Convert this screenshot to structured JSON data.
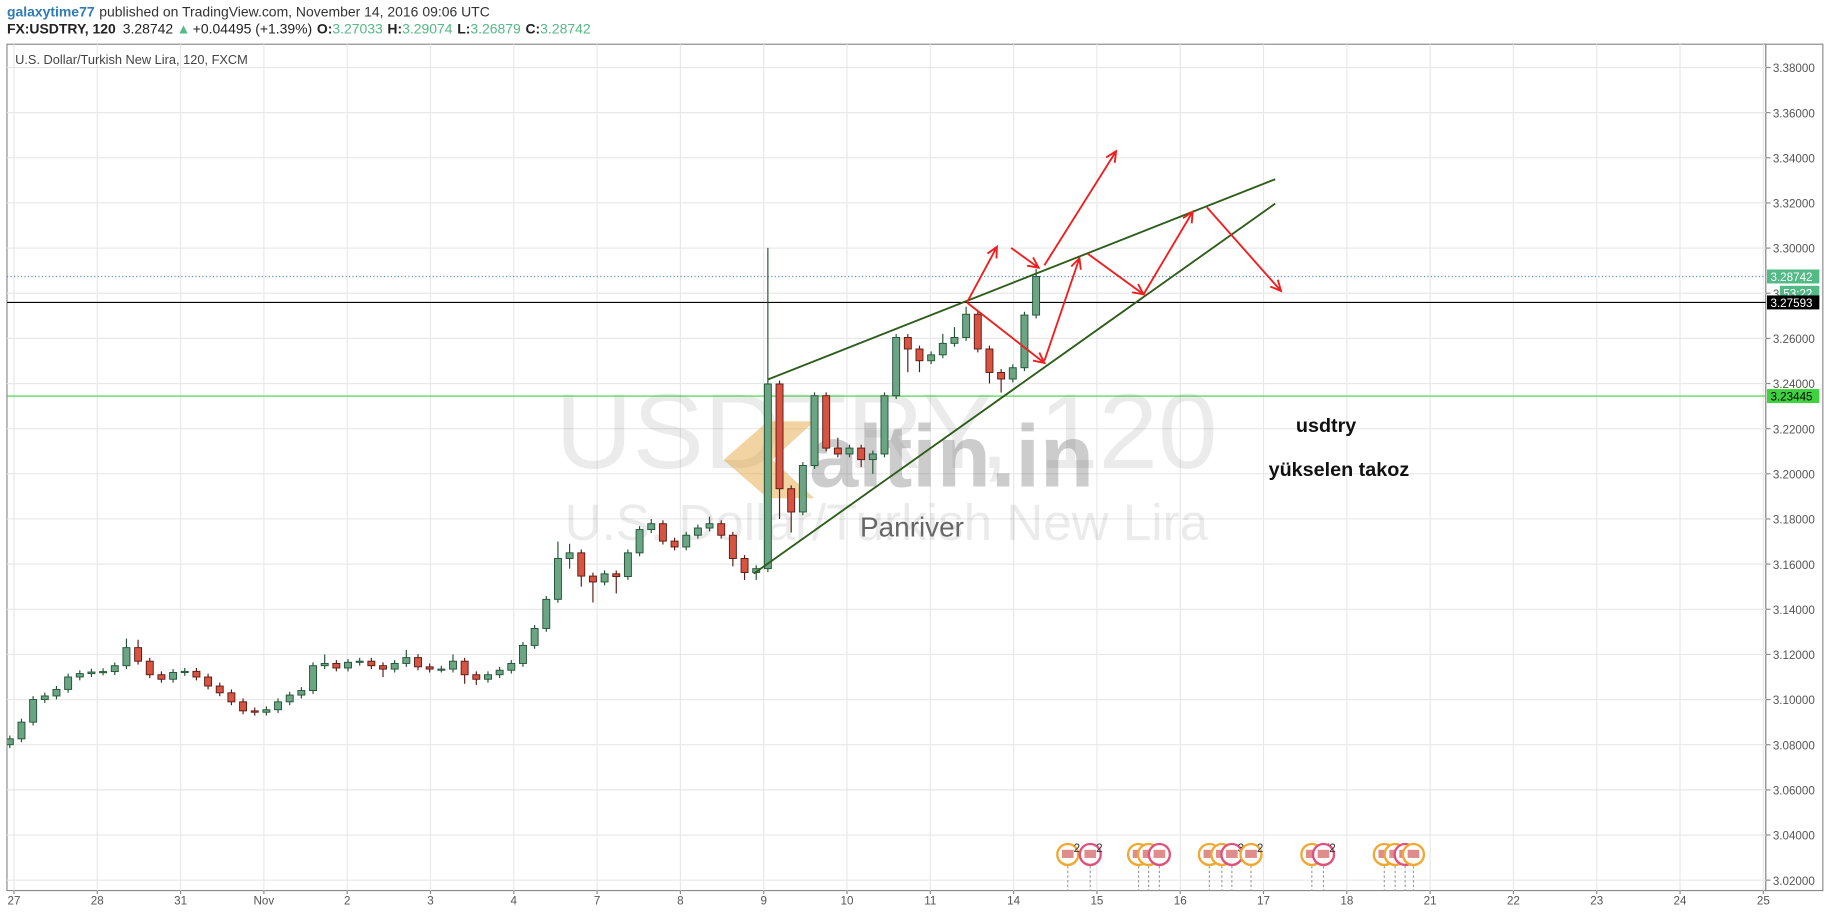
{
  "header": {
    "author": "galaxytime77",
    "published": "published on TradingView.com, November 14, 2016 09:06 UTC",
    "symbol": "FX:USDTRY, 120",
    "direction": "▲",
    "change": "+0.04495 (+1.39%)",
    "ohlc_labels": [
      "O:",
      "H:",
      "L:",
      "C:"
    ]
  },
  "chart_data": {
    "type": "candlestick",
    "title": "U.S. Dollar/Turkish New Lira, 120, FXCM",
    "watermark": "USDTRY, 120",
    "watermark_subtitle": "U.S. Dollar/Turkish New Lira",
    "logo": "altin.in",
    "logo_caption": "Panriver",
    "annotations": [
      "usdtry",
      "yükselen takoz"
    ],
    "x": [
      -0.05,
      0.09,
      0.23,
      0.37,
      0.51,
      0.65,
      0.79,
      0.93,
      1.07,
      1.21,
      1.35,
      1.49,
      1.63,
      1.77,
      1.91,
      2.05,
      2.19,
      2.33,
      2.47,
      2.61,
      2.75,
      2.89,
      3.03,
      3.17,
      3.31,
      3.45,
      3.59,
      3.73,
      3.87,
      4.01,
      4.15,
      4.29,
      4.43,
      4.57,
      4.71,
      4.85,
      4.99,
      5.13,
      5.27,
      5.41,
      5.55,
      5.69,
      5.83,
      5.97,
      6.11,
      6.25,
      6.39,
      6.53,
      6.67,
      6.81,
      6.95,
      7.09,
      7.23,
      7.37,
      7.51,
      7.65,
      7.79,
      7.93,
      8.07,
      8.21,
      8.35,
      8.49,
      8.63,
      8.77,
      8.91,
      9.05,
      9.19,
      9.33,
      9.47,
      9.61,
      9.75,
      9.89,
      10.03,
      10.17,
      10.31,
      10.45,
      10.59,
      10.73,
      10.87,
      11.01,
      11.15,
      11.29,
      11.43,
      11.57,
      11.71,
      11.85,
      11.99,
      12.13,
      12.27
    ],
    "open": [
      3.08,
      3.0826,
      3.09,
      3.1,
      3.1016,
      3.1045,
      3.11,
      3.1115,
      3.1122,
      3.1124,
      3.115,
      3.123,
      3.117,
      3.111,
      3.109,
      3.112,
      3.1125,
      3.11,
      3.106,
      3.103,
      3.099,
      3.095,
      3.0944,
      3.0955,
      3.099,
      3.102,
      3.104,
      3.115,
      3.116,
      3.114,
      3.1165,
      3.117,
      3.115,
      3.1135,
      3.116,
      3.1186,
      3.1145,
      3.1135,
      3.1135,
      3.117,
      3.111,
      3.109,
      3.111,
      3.113,
      3.116,
      3.124,
      3.1315,
      3.1444,
      3.1625,
      3.165,
      3.1547,
      3.1521,
      3.1557,
      3.1545,
      3.165,
      3.1753,
      3.1779,
      3.1702,
      3.1676,
      3.1728,
      3.176,
      3.1779,
      3.1728,
      3.1625,
      3.1563,
      3.158,
      3.2398,
      3.1934,
      3.1831,
      3.2037,
      3.2346,
      3.2114,
      3.2088,
      3.2114,
      3.2063,
      3.2088,
      3.2346,
      3.2604,
      3.2553,
      3.2501,
      3.2527,
      3.2578,
      3.2604,
      3.2707,
      3.2553,
      3.2449,
      3.242,
      3.247,
      3.27033
    ],
    "high": [
      3.0841,
      3.0915,
      3.1015,
      3.1031,
      3.106,
      3.1115,
      3.113,
      3.1137,
      3.1139,
      3.1165,
      3.127,
      3.1265,
      3.1185,
      3.1125,
      3.1135,
      3.114,
      3.114,
      3.1115,
      3.1075,
      3.1045,
      3.1005,
      3.0965,
      3.097,
      3.1005,
      3.1035,
      3.1055,
      3.1165,
      3.12,
      3.1175,
      3.118,
      3.1185,
      3.1185,
      3.1165,
      3.1175,
      3.122,
      3.1201,
      3.116,
      3.115,
      3.12,
      3.1185,
      3.1125,
      3.1125,
      3.1145,
      3.1175,
      3.1255,
      3.133,
      3.1459,
      3.17,
      3.169,
      3.1665,
      3.1562,
      3.1572,
      3.1572,
      3.1665,
      3.1768,
      3.18,
      3.1794,
      3.1717,
      3.1743,
      3.1775,
      3.181,
      3.1794,
      3.1743,
      3.164,
      3.1595,
      3.3001,
      3.2413,
      3.1949,
      3.2052,
      3.2361,
      3.2361,
      3.216,
      3.2129,
      3.2129,
      3.2103,
      3.2361,
      3.2619,
      3.2619,
      3.2568,
      3.2542,
      3.262,
      3.265,
      3.274,
      3.2722,
      3.2568,
      3.2464,
      3.2485,
      3.2718,
      3.29074
    ],
    "low": [
      3.0785,
      3.0811,
      3.0885,
      3.0985,
      3.1001,
      3.103,
      3.1085,
      3.11,
      3.1107,
      3.1109,
      3.1135,
      3.1155,
      3.1095,
      3.1075,
      3.1075,
      3.1105,
      3.1085,
      3.1045,
      3.1015,
      3.0975,
      3.0935,
      3.0929,
      3.0929,
      3.094,
      3.0975,
      3.1005,
      3.1025,
      3.1135,
      3.1125,
      3.1125,
      3.115,
      3.1135,
      3.11,
      3.112,
      3.1145,
      3.113,
      3.112,
      3.112,
      3.112,
      3.107,
      3.1065,
      3.1075,
      3.1095,
      3.1115,
      3.1145,
      3.1225,
      3.13,
      3.1429,
      3.158,
      3.15,
      3.143,
      3.1506,
      3.147,
      3.153,
      3.1635,
      3.1738,
      3.1687,
      3.1661,
      3.1661,
      3.1713,
      3.1745,
      3.1713,
      3.159,
      3.153,
      3.153,
      3.1565,
      3.18,
      3.174,
      3.1816,
      3.2022,
      3.2099,
      3.2073,
      3.2073,
      3.203,
      3.2,
      3.2073,
      3.2331,
      3.245,
      3.245,
      3.2486,
      3.2512,
      3.2563,
      3.2589,
      3.2538,
      3.24,
      3.236,
      3.2405,
      3.2455,
      3.26879
    ],
    "close": [
      3.0826,
      3.09,
      3.1,
      3.1016,
      3.1045,
      3.11,
      3.1115,
      3.1122,
      3.1124,
      3.115,
      3.123,
      3.117,
      3.111,
      3.109,
      3.112,
      3.1125,
      3.11,
      3.106,
      3.103,
      3.099,
      3.095,
      3.0944,
      3.0955,
      3.099,
      3.102,
      3.104,
      3.115,
      3.116,
      3.114,
      3.1165,
      3.117,
      3.115,
      3.1135,
      3.116,
      3.1186,
      3.1145,
      3.1135,
      3.1135,
      3.117,
      3.111,
      3.109,
      3.111,
      3.113,
      3.116,
      3.124,
      3.1315,
      3.1444,
      3.1625,
      3.165,
      3.1547,
      3.1521,
      3.1557,
      3.1545,
      3.165,
      3.1753,
      3.1779,
      3.1702,
      3.1676,
      3.1728,
      3.176,
      3.1779,
      3.1728,
      3.1625,
      3.1563,
      3.158,
      3.2398,
      3.1934,
      3.1831,
      3.2037,
      3.2346,
      3.2114,
      3.2088,
      3.2114,
      3.2063,
      3.2088,
      3.2346,
      3.2604,
      3.2553,
      3.2501,
      3.2527,
      3.2578,
      3.2604,
      3.2707,
      3.2553,
      3.2449,
      3.242,
      3.247,
      3.27033,
      3.28742
    ],
    "up_color": "#6ba583",
    "down_color": "#d75442",
    "xlim": [
      -0.084,
      21.03
    ],
    "xticks": [
      {
        "value": 0,
        "label": "27"
      },
      {
        "value": 1,
        "label": "28"
      },
      {
        "value": 2,
        "label": "31"
      },
      {
        "value": 3,
        "label": "Nov"
      },
      {
        "value": 4,
        "label": "2"
      },
      {
        "value": 5,
        "label": "3"
      },
      {
        "value": 6,
        "label": "4"
      },
      {
        "value": 7,
        "label": "7"
      },
      {
        "value": 8,
        "label": "8"
      },
      {
        "value": 9,
        "label": "9"
      },
      {
        "value": 10,
        "label": "10"
      },
      {
        "value": 11,
        "label": "11"
      },
      {
        "value": 12,
        "label": "14"
      },
      {
        "value": 13,
        "label": "15"
      },
      {
        "value": 14,
        "label": "16"
      },
      {
        "value": 15,
        "label": "17"
      },
      {
        "value": 16,
        "label": "18"
      },
      {
        "value": 17,
        "label": "21"
      },
      {
        "value": 18,
        "label": "22"
      },
      {
        "value": 19,
        "label": "23"
      },
      {
        "value": 20,
        "label": "24"
      },
      {
        "value": 21,
        "label": "25"
      }
    ],
    "ylim": [
      3.0154,
      3.3903
    ],
    "yticks": [
      {
        "value": 3.02,
        "label": "3.02000"
      },
      {
        "value": 3.04,
        "label": "3.04000"
      },
      {
        "value": 3.06,
        "label": "3.06000"
      },
      {
        "value": 3.08,
        "label": "3.08000"
      },
      {
        "value": 3.1,
        "label": "3.10000"
      },
      {
        "value": 3.12,
        "label": "3.12000"
      },
      {
        "value": 3.14,
        "label": "3.14000"
      },
      {
        "value": 3.16,
        "label": "3.16000"
      },
      {
        "value": 3.18,
        "label": "3.18000"
      },
      {
        "value": 3.2,
        "label": "3.20000"
      },
      {
        "value": 3.22,
        "label": "3.22000"
      },
      {
        "value": 3.24,
        "label": "3.24000"
      },
      {
        "value": 3.26,
        "label": "3.26000"
      },
      {
        "value": 3.28,
        "label": "3.28000"
      },
      {
        "value": 3.3,
        "label": "3.30000"
      },
      {
        "value": 3.32,
        "label": "3.32000"
      },
      {
        "value": 3.34,
        "label": "3.34000"
      },
      {
        "value": 3.36,
        "label": "3.36000"
      },
      {
        "value": 3.38,
        "label": "3.38000"
      }
    ],
    "grid": true,
    "last_price_color": "#53b987",
    "countdown": "53:22",
    "hlines": [
      {
        "value": 3.27593,
        "color": "#000000"
      },
      {
        "value": 3.23445,
        "color": "#3fd23f"
      }
    ],
    "trendlines": {
      "color": "#2e5c1a",
      "lines": [
        {
          "x": [
            9.05,
            15.14
          ],
          "y": [
            3.2418,
            3.3305
          ]
        },
        {
          "x": [
            8.88,
            15.14
          ],
          "y": [
            3.1558,
            3.3197
          ]
        }
      ]
    },
    "arrows": {
      "color": "#f01e1e",
      "lines": [
        {
          "x": [
            11.44,
            11.8
          ],
          "y": [
            3.2759,
            3.3006
          ]
        },
        {
          "x": [
            11.97,
            12.3
          ],
          "y": [
            3.3001,
            3.2913
          ]
        },
        {
          "x": [
            12.37,
            13.23
          ],
          "y": [
            3.2924,
            3.3429
          ]
        },
        {
          "x": [
            11.44,
            12.37
          ],
          "y": [
            3.2759,
            3.2491
          ]
        },
        {
          "x": [
            12.37,
            12.79
          ],
          "y": [
            3.2501,
            3.2955
          ]
        },
        {
          "x": [
            12.89,
            13.56
          ],
          "y": [
            3.2975,
            3.2795
          ]
        },
        {
          "x": [
            13.56,
            14.15
          ],
          "y": [
            3.2795,
            3.3161
          ]
        },
        {
          "x": [
            14.32,
            15.21
          ],
          "y": [
            3.3181,
            3.281
          ]
        }
      ]
    },
    "events": {
      "x": [
        12.65,
        12.92,
        13.5,
        13.62,
        13.75,
        14.35,
        14.5,
        14.62,
        14.85,
        15.58,
        15.72,
        16.45,
        16.58,
        16.7,
        16.8
      ],
      "labels": [
        "2",
        "2",
        "8",
        null,
        null,
        null,
        "7",
        "3",
        "2",
        "14",
        "2",
        null,
        null,
        null,
        null
      ]
    }
  }
}
